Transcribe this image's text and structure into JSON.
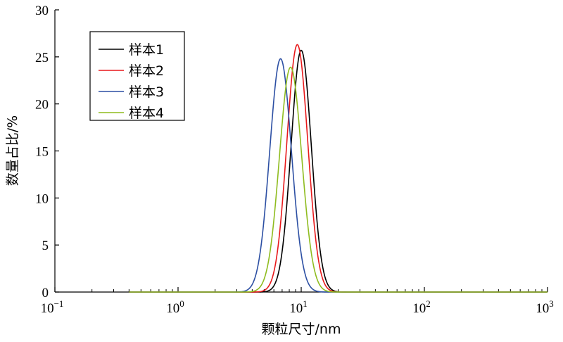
{
  "chart_data": {
    "type": "line",
    "xscale": "log",
    "xlim": [
      0.1,
      1000
    ],
    "ylim": [
      0,
      30
    ],
    "xlabel": "颗粒尺寸/nm",
    "ylabel": "数量占比/%",
    "x_ticks": [
      {
        "value": 0.1,
        "base": "10",
        "exp": "−1"
      },
      {
        "value": 1,
        "base": "10",
        "exp": "0"
      },
      {
        "value": 10,
        "base": "10",
        "exp": "1"
      },
      {
        "value": 100,
        "base": "10",
        "exp": "2"
      },
      {
        "value": 1000,
        "base": "10",
        "exp": "3"
      }
    ],
    "y_ticks": [
      "0",
      "5",
      "10",
      "15",
      "20",
      "25",
      "30"
    ],
    "legend_position": "top-left",
    "series": [
      {
        "name": "样本1",
        "color": "#000000",
        "peak_x": 10.0,
        "peak_y": 25.7,
        "sigma_log10": 0.082
      },
      {
        "name": "样本2",
        "color": "#e8191b",
        "peak_x": 9.3,
        "peak_y": 26.3,
        "sigma_log10": 0.085
      },
      {
        "name": "样本3",
        "color": "#2c4fa3",
        "peak_x": 6.8,
        "peak_y": 24.8,
        "sigma_log10": 0.088
      },
      {
        "name": "样本4",
        "color": "#8fbc1f",
        "peak_x": 8.2,
        "peak_y": 23.9,
        "sigma_log10": 0.09
      }
    ],
    "baseline_x_range": [
      0.4,
      1000
    ]
  }
}
